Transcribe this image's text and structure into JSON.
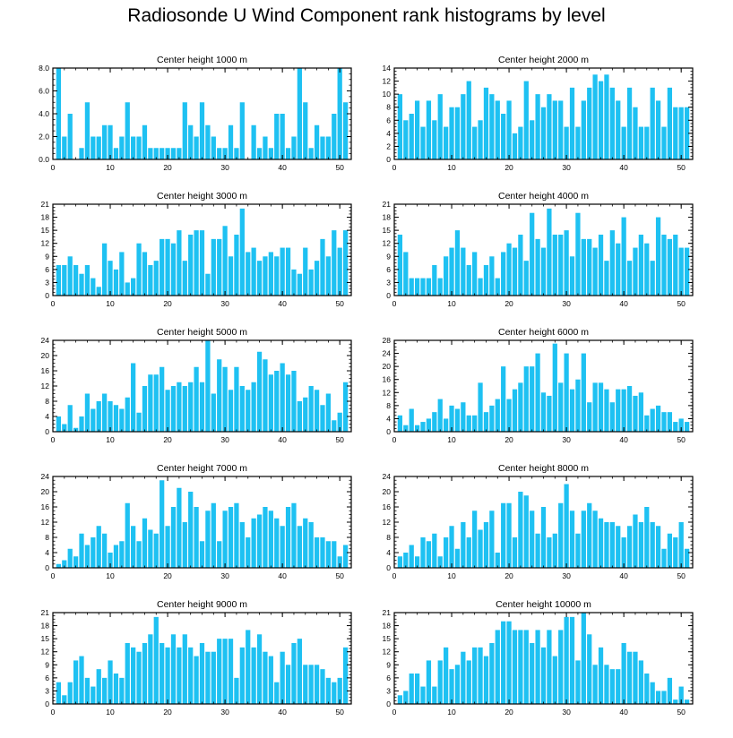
{
  "colors": {
    "bar": "#1ec1f2",
    "axis": "#000000"
  },
  "chart_data": {
    "type": "bar",
    "title": "Radiosonde U Wind Component rank histograms by level",
    "panels": [
      {
        "title": "Center height 1000 m",
        "ylim": [
          0,
          8
        ],
        "yticks": [
          0,
          2,
          4,
          6,
          8
        ],
        "ytick_labels": [
          "0.0",
          "2.0",
          "4.0",
          "6.0",
          "8.0"
        ],
        "xlim": [
          0,
          52
        ],
        "xticks": [
          0,
          10,
          20,
          30,
          40,
          50
        ],
        "xtick_labels": [
          "0",
          "10",
          "20",
          "30",
          "40",
          "50"
        ],
        "values": [
          8,
          2,
          4,
          0,
          1,
          5,
          2,
          2,
          3,
          3,
          1,
          2,
          5,
          2,
          2,
          3,
          1,
          1,
          1,
          1,
          1,
          1,
          5,
          3,
          2,
          5,
          3,
          2,
          1,
          1,
          3,
          1,
          5,
          0,
          3,
          1,
          2,
          1,
          4,
          4,
          1,
          2,
          8,
          5,
          1,
          3,
          2,
          2,
          4,
          8,
          5
        ]
      },
      {
        "title": "Center height 2000 m",
        "ylim": [
          0,
          14
        ],
        "yticks": [
          0,
          2,
          4,
          6,
          8,
          10,
          12,
          14
        ],
        "ytick_labels": [
          "0",
          "2",
          "4",
          "6",
          "8",
          "10",
          "12",
          "14"
        ],
        "xlim": [
          0,
          52
        ],
        "xticks": [
          0,
          10,
          20,
          30,
          40,
          50
        ],
        "xtick_labels": [
          "0",
          "10",
          "20",
          "30",
          "40",
          "50"
        ],
        "values": [
          10,
          6,
          7,
          9,
          5,
          9,
          6,
          10,
          5,
          8,
          8,
          10,
          12,
          5,
          6,
          11,
          10,
          9,
          7,
          9,
          4,
          5,
          12,
          6,
          10,
          8,
          10,
          9,
          9,
          5,
          11,
          5,
          9,
          11,
          13,
          12,
          13,
          11,
          9,
          5,
          11,
          8,
          5,
          5,
          11,
          9,
          5,
          11,
          8,
          8,
          8
        ]
      },
      {
        "title": "Center height 3000 m",
        "ylim": [
          0,
          21
        ],
        "yticks": [
          0,
          3,
          6,
          9,
          12,
          15,
          18,
          21
        ],
        "ytick_labels": [
          "0",
          "3",
          "6",
          "9",
          "12",
          "15",
          "18",
          "21"
        ],
        "xlim": [
          0,
          52
        ],
        "xticks": [
          0,
          10,
          20,
          30,
          40,
          50
        ],
        "xtick_labels": [
          "0",
          "10",
          "20",
          "30",
          "40",
          "50"
        ],
        "values": [
          7,
          7,
          9,
          7,
          5,
          7,
          4,
          2,
          12,
          8,
          6,
          10,
          3,
          4,
          12,
          10,
          7,
          8,
          13,
          13,
          12,
          15,
          8,
          14,
          15,
          15,
          5,
          13,
          13,
          16,
          9,
          14,
          20,
          10,
          11,
          8,
          9,
          10,
          9,
          11,
          11,
          6,
          5,
          11,
          6,
          8,
          13,
          9,
          15,
          11,
          15
        ]
      },
      {
        "title": "Center height 4000 m",
        "ylim": [
          0,
          21
        ],
        "yticks": [
          0,
          3,
          6,
          9,
          12,
          15,
          18,
          21
        ],
        "ytick_labels": [
          "0",
          "3",
          "6",
          "9",
          "12",
          "15",
          "18",
          "21"
        ],
        "xlim": [
          0,
          52
        ],
        "xticks": [
          0,
          10,
          20,
          30,
          40,
          50
        ],
        "xtick_labels": [
          "0",
          "10",
          "20",
          "30",
          "40",
          "50"
        ],
        "values": [
          14,
          10,
          4,
          4,
          4,
          4,
          7,
          4,
          9,
          11,
          15,
          11,
          7,
          10,
          4,
          7,
          9,
          4,
          10,
          12,
          11,
          14,
          8,
          19,
          13,
          11,
          20,
          14,
          14,
          15,
          9,
          19,
          13,
          13,
          11,
          14,
          8,
          15,
          12,
          18,
          8,
          11,
          14,
          12,
          8,
          18,
          14,
          13,
          14,
          11,
          11
        ]
      },
      {
        "title": "Center height 5000 m",
        "ylim": [
          0,
          24
        ],
        "yticks": [
          0,
          4,
          8,
          12,
          16,
          20,
          24
        ],
        "ytick_labels": [
          "0",
          "4",
          "8",
          "12",
          "16",
          "20",
          "24"
        ],
        "xlim": [
          0,
          52
        ],
        "xticks": [
          0,
          10,
          20,
          30,
          40,
          50
        ],
        "xtick_labels": [
          "0",
          "10",
          "20",
          "30",
          "40",
          "50"
        ],
        "values": [
          4,
          2,
          7,
          1,
          4,
          10,
          6,
          8,
          10,
          8,
          7,
          6,
          9,
          18,
          5,
          12,
          15,
          15,
          17,
          11,
          12,
          13,
          12,
          13,
          17,
          13,
          24,
          10,
          19,
          17,
          11,
          17,
          12,
          11,
          13,
          21,
          19,
          15,
          16,
          18,
          15,
          16,
          8,
          9,
          12,
          11,
          7,
          10,
          3,
          5,
          13
        ]
      },
      {
        "title": "Center height 6000 m",
        "ylim": [
          0,
          28
        ],
        "yticks": [
          0,
          4,
          8,
          12,
          16,
          20,
          24,
          28
        ],
        "ytick_labels": [
          "0",
          "4",
          "8",
          "12",
          "16",
          "20",
          "24",
          "28"
        ],
        "xlim": [
          0,
          52
        ],
        "xticks": [
          0,
          10,
          20,
          30,
          40,
          50
        ],
        "xtick_labels": [
          "0",
          "10",
          "20",
          "30",
          "40",
          "50"
        ],
        "values": [
          5,
          2,
          7,
          2,
          3,
          4,
          6,
          10,
          4,
          8,
          7,
          9,
          5,
          5,
          15,
          6,
          8,
          10,
          20,
          10,
          13,
          15,
          20,
          20,
          24,
          12,
          11,
          27,
          15,
          24,
          13,
          16,
          24,
          9,
          15,
          15,
          13,
          9,
          13,
          13,
          14,
          11,
          12,
          5,
          7,
          8,
          6,
          6,
          3,
          4,
          3
        ]
      },
      {
        "title": "Center height 7000 m",
        "ylim": [
          0,
          24
        ],
        "yticks": [
          0,
          4,
          8,
          12,
          16,
          20,
          24
        ],
        "ytick_labels": [
          "0",
          "4",
          "8",
          "12",
          "16",
          "20",
          "24"
        ],
        "xlim": [
          0,
          52
        ],
        "xticks": [
          0,
          10,
          20,
          30,
          40,
          50
        ],
        "xtick_labels": [
          "0",
          "10",
          "20",
          "30",
          "40",
          "50"
        ],
        "values": [
          1,
          2,
          5,
          3,
          9,
          6,
          8,
          11,
          9,
          4,
          6,
          7,
          17,
          11,
          7,
          13,
          10,
          9,
          23,
          11,
          16,
          21,
          12,
          20,
          16,
          7,
          15,
          17,
          7,
          15,
          16,
          17,
          12,
          8,
          13,
          14,
          16,
          15,
          13,
          11,
          16,
          17,
          11,
          13,
          12,
          8,
          8,
          7,
          7,
          3,
          6
        ]
      },
      {
        "title": "Center height 8000 m",
        "ylim": [
          0,
          24
        ],
        "yticks": [
          0,
          4,
          8,
          12,
          16,
          20,
          24
        ],
        "ytick_labels": [
          "0",
          "4",
          "8",
          "12",
          "16",
          "20",
          "24"
        ],
        "xlim": [
          0,
          52
        ],
        "xticks": [
          0,
          10,
          20,
          30,
          40,
          50
        ],
        "xtick_labels": [
          "0",
          "10",
          "20",
          "30",
          "40",
          "50"
        ],
        "values": [
          3,
          4,
          6,
          3,
          8,
          7,
          9,
          3,
          8,
          11,
          5,
          12,
          8,
          15,
          10,
          12,
          15,
          4,
          17,
          17,
          8,
          20,
          19,
          15,
          9,
          16,
          8,
          9,
          17,
          22,
          15,
          9,
          15,
          17,
          15,
          13,
          12,
          12,
          11,
          8,
          11,
          14,
          12,
          16,
          12,
          11,
          5,
          9,
          8,
          12,
          5
        ]
      },
      {
        "title": "Center height 9000 m",
        "ylim": [
          0,
          21
        ],
        "yticks": [
          0,
          3,
          6,
          9,
          12,
          15,
          18,
          21
        ],
        "ytick_labels": [
          "0",
          "3",
          "6",
          "9",
          "12",
          "15",
          "18",
          "21"
        ],
        "xlim": [
          0,
          52
        ],
        "xticks": [
          0,
          10,
          20,
          30,
          40,
          50
        ],
        "xtick_labels": [
          "0",
          "10",
          "20",
          "30",
          "40",
          "50"
        ],
        "values": [
          5,
          2,
          5,
          10,
          11,
          6,
          4,
          8,
          6,
          10,
          7,
          6,
          14,
          13,
          12,
          14,
          16,
          20,
          14,
          13,
          16,
          13,
          16,
          13,
          11,
          14,
          12,
          12,
          15,
          15,
          15,
          6,
          13,
          17,
          13,
          16,
          12,
          11,
          5,
          12,
          9,
          14,
          15,
          9,
          9,
          9,
          8,
          6,
          5,
          6,
          13
        ]
      },
      {
        "title": "Center height 10000 m",
        "ylim": [
          0,
          21
        ],
        "yticks": [
          0,
          3,
          6,
          9,
          12,
          15,
          18,
          21
        ],
        "ytick_labels": [
          "0",
          "3",
          "6",
          "9",
          "12",
          "15",
          "18",
          "21"
        ],
        "xlim": [
          0,
          52
        ],
        "xticks": [
          0,
          10,
          20,
          30,
          40,
          50
        ],
        "xtick_labels": [
          "0",
          "10",
          "20",
          "30",
          "40",
          "50"
        ],
        "values": [
          2,
          3,
          7,
          7,
          4,
          10,
          4,
          10,
          13,
          8,
          9,
          12,
          10,
          13,
          13,
          11,
          14,
          17,
          19,
          19,
          17,
          17,
          17,
          14,
          17,
          13,
          17,
          11,
          17,
          20,
          20,
          10,
          21,
          16,
          9,
          13,
          9,
          8,
          8,
          14,
          12,
          12,
          10,
          7,
          5,
          3,
          3,
          6,
          1,
          4,
          1
        ]
      }
    ]
  }
}
